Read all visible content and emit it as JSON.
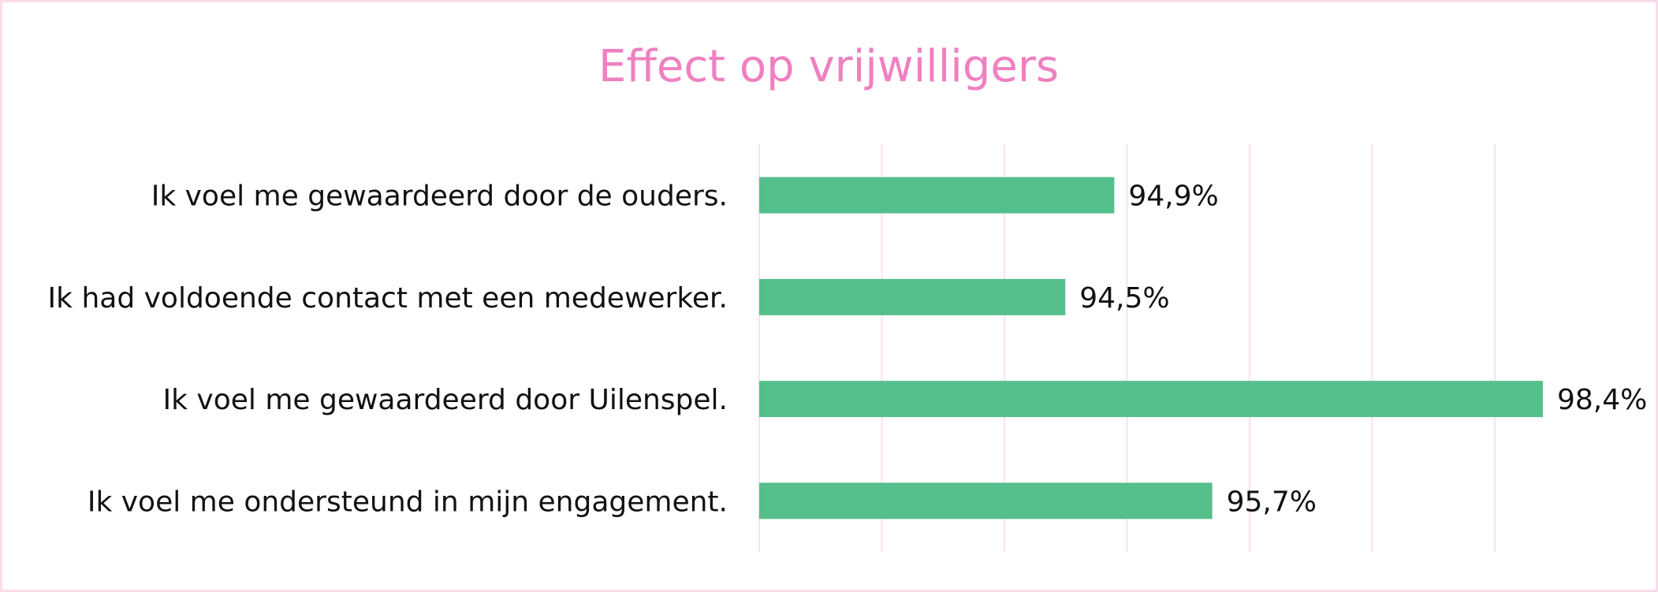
{
  "chart_data": {
    "type": "bar",
    "orientation": "horizontal",
    "title": "Effect op vrijwilligers",
    "categories": [
      "Ik voel me gewaardeerd door de ouders.",
      "Ik had voldoende contact met een medewerker.",
      "Ik voel me gewaardeerd door Uilenspel.",
      "Ik voel me ondersteund in mijn engagement."
    ],
    "values": [
      94.9,
      94.5,
      98.4,
      95.7
    ],
    "value_labels": [
      "94,9%",
      "94,5%",
      "98,4%",
      "95,7%"
    ],
    "xlim": [
      92,
      98.6
    ],
    "grid": true,
    "legend": "none",
    "colors": {
      "bar": "#55bf8c",
      "title": "#f080c0",
      "grid": "#fbe0ee",
      "border": "#f8dcea",
      "text": "#111111"
    }
  }
}
